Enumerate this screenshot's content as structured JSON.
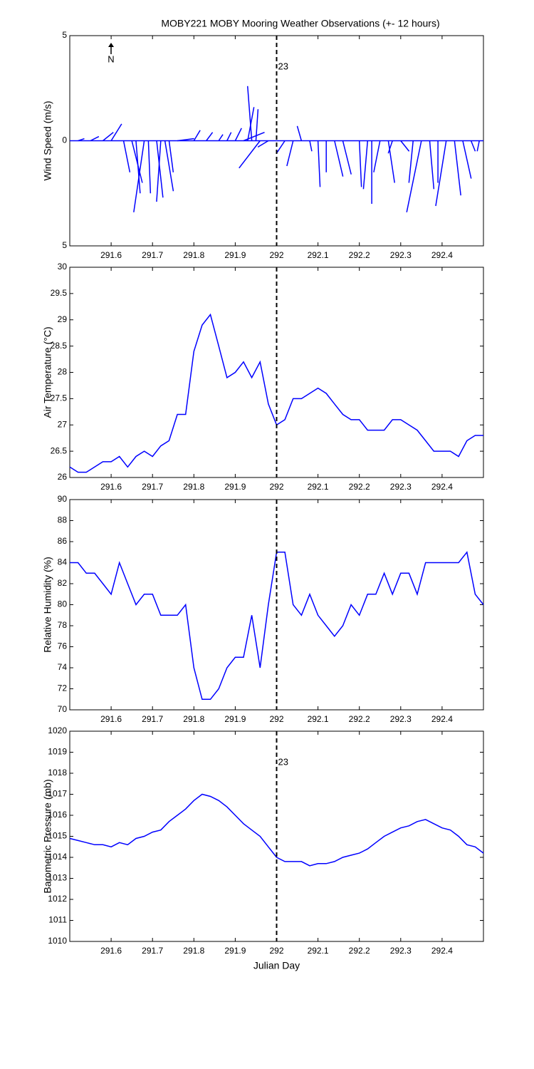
{
  "chart_data": [
    {
      "type": "stick",
      "title": "MOBY221 MOBY Mooring Weather Observations (+- 12 hours)",
      "y_label": "Wind Speed (m/s)",
      "north_label": "N",
      "color": "#0000ff",
      "annotation": {
        "text": "23",
        "x": 292,
        "y": 3.5,
        "color": "#cc0000"
      },
      "vline": 292,
      "xlim": [
        291.5,
        292.5
      ],
      "xticks": [
        291.6,
        291.7,
        291.8,
        291.9,
        292,
        292.1,
        292.2,
        292.3,
        292.4
      ],
      "ylim": [
        -5,
        5
      ],
      "yticks": [
        {
          "value": -5,
          "label": "5"
        },
        0,
        5
      ],
      "x": [
        291.52,
        291.55,
        291.58,
        291.6,
        291.63,
        291.65,
        291.66,
        291.68,
        291.69,
        291.71,
        291.72,
        291.73,
        291.74,
        291.76,
        291.8,
        291.83,
        291.86,
        291.88,
        291.9,
        291.92,
        291.93,
        291.94,
        291.95,
        291.96,
        291.98,
        292.02,
        292.04,
        292.06,
        292.08,
        292.1,
        292.12,
        292.14,
        292.16,
        292.2,
        292.22,
        292.23,
        292.25,
        292.27,
        292.28,
        292.3,
        292.33,
        292.35,
        292.37,
        292.39,
        292.41,
        292.43,
        292.45,
        292.47,
        292.49
      ],
      "u": [
        0.3,
        0.4,
        0.5,
        0.5,
        0.3,
        0.5,
        0.2,
        -0.5,
        0.1,
        0.3,
        -0.2,
        0.4,
        0.2,
        0.8,
        0.3,
        0.3,
        0.2,
        0.2,
        0.3,
        1.0,
        0.3,
        -0.2,
        0.1,
        -1.0,
        -0.5,
        -0.4,
        -0.3,
        -0.2,
        0.1,
        0.1,
        0.0,
        0.4,
        0.4,
        0.1,
        -0.2,
        0.0,
        -0.3,
        0.3,
        -0.2,
        0.4,
        -0.2,
        -0.7,
        0.2,
        0.0,
        -0.5,
        0.3,
        0.4,
        0.2,
        -0.1
      ],
      "v": [
        0.1,
        0.2,
        0.4,
        0.8,
        -1.5,
        -2.0,
        -2.5,
        -3.4,
        -2.5,
        -2.7,
        -2.9,
        -2.4,
        -1.5,
        0.1,
        0.5,
        0.4,
        0.3,
        0.4,
        0.6,
        0.4,
        1.6,
        2.6,
        1.5,
        -1.3,
        -0.3,
        -0.6,
        -1.2,
        0.7,
        -0.5,
        -2.2,
        -1.5,
        -1.7,
        -1.6,
        -2.2,
        -2.3,
        -3.0,
        -1.5,
        -2.0,
        -0.6,
        -0.5,
        -2.0,
        -3.4,
        -2.3,
        -2.0,
        -3.1,
        -2.6,
        -1.8,
        -0.5,
        -0.5
      ]
    },
    {
      "type": "line",
      "y_label": "Air Temperature (°C)",
      "color": "#0000ff",
      "vline": 292,
      "xlim": [
        291.5,
        292.5
      ],
      "xticks": [
        291.6,
        291.7,
        291.8,
        291.9,
        292,
        292.1,
        292.2,
        292.3,
        292.4
      ],
      "ylim": [
        26,
        30
      ],
      "yticks": [
        26,
        26.5,
        27,
        27.5,
        28,
        28.5,
        29,
        29.5,
        30
      ],
      "x": [
        291.5,
        291.52,
        291.54,
        291.56,
        291.58,
        291.6,
        291.62,
        291.64,
        291.66,
        291.68,
        291.7,
        291.72,
        291.74,
        291.76,
        291.78,
        291.8,
        291.82,
        291.84,
        291.86,
        291.88,
        291.9,
        291.92,
        291.94,
        291.96,
        291.98,
        292,
        292.02,
        292.04,
        292.06,
        292.08,
        292.1,
        292.12,
        292.14,
        292.16,
        292.18,
        292.2,
        292.22,
        292.24,
        292.26,
        292.28,
        292.3,
        292.32,
        292.34,
        292.36,
        292.38,
        292.4,
        292.42,
        292.44,
        292.46,
        292.48,
        292.5
      ],
      "values": [
        26.2,
        26.1,
        26.1,
        26.2,
        26.3,
        26.3,
        26.4,
        26.2,
        26.4,
        26.5,
        26.4,
        26.6,
        26.7,
        27.2,
        27.2,
        28.4,
        28.9,
        29.1,
        28.5,
        27.9,
        28.0,
        28.2,
        27.9,
        28.2,
        27.4,
        27.0,
        27.1,
        27.5,
        27.5,
        27.6,
        27.7,
        27.6,
        27.4,
        27.2,
        27.1,
        27.1,
        26.9,
        26.9,
        26.9,
        27.1,
        27.1,
        27.0,
        26.9,
        26.7,
        26.5,
        26.5,
        26.5,
        26.4,
        26.7,
        26.8,
        26.8
      ]
    },
    {
      "type": "line",
      "y_label": "Relative Humidity (%)",
      "color": "#0000ff",
      "vline": 292,
      "xlim": [
        291.5,
        292.5
      ],
      "xticks": [
        291.6,
        291.7,
        291.8,
        291.9,
        292,
        292.1,
        292.2,
        292.3,
        292.4
      ],
      "ylim": [
        70,
        90
      ],
      "yticks": [
        70,
        72,
        74,
        76,
        78,
        80,
        82,
        84,
        86,
        88,
        90
      ],
      "x": [
        291.5,
        291.52,
        291.54,
        291.56,
        291.58,
        291.6,
        291.62,
        291.64,
        291.66,
        291.68,
        291.7,
        291.72,
        291.74,
        291.76,
        291.78,
        291.8,
        291.82,
        291.84,
        291.86,
        291.88,
        291.9,
        291.92,
        291.94,
        291.96,
        291.98,
        292,
        292.02,
        292.04,
        292.06,
        292.08,
        292.1,
        292.12,
        292.14,
        292.16,
        292.18,
        292.2,
        292.22,
        292.24,
        292.26,
        292.28,
        292.3,
        292.32,
        292.34,
        292.36,
        292.38,
        292.4,
        292.42,
        292.44,
        292.46,
        292.48,
        292.5
      ],
      "values": [
        84,
        84,
        83,
        83,
        82,
        81,
        84,
        82,
        80,
        81,
        81,
        79,
        79,
        79,
        80,
        74,
        71,
        71,
        72,
        74,
        75,
        75,
        79,
        74,
        80,
        85,
        85,
        80,
        79,
        81,
        79,
        78,
        77,
        78,
        80,
        79,
        81,
        81,
        83,
        81,
        83,
        83,
        81,
        84,
        84,
        84,
        84,
        84,
        85,
        81,
        80
      ]
    },
    {
      "type": "line",
      "y_label": "Barometric Pressure (mb)",
      "x_label": "Julian Day",
      "color": "#0000ff",
      "vline": 292,
      "annotation": {
        "text": "23",
        "x": 292,
        "y": 1018.5,
        "color": "#cc0000"
      },
      "xlim": [
        291.5,
        292.5
      ],
      "xticks": [
        291.6,
        291.7,
        291.8,
        291.9,
        292,
        292.1,
        292.2,
        292.3,
        292.4
      ],
      "ylim": [
        1010,
        1020
      ],
      "yticks": [
        1010,
        1011,
        1012,
        1013,
        1014,
        1015,
        1016,
        1017,
        1018,
        1019,
        1020
      ],
      "x": [
        291.5,
        291.52,
        291.54,
        291.56,
        291.58,
        291.6,
        291.62,
        291.64,
        291.66,
        291.68,
        291.7,
        291.72,
        291.74,
        291.76,
        291.78,
        291.8,
        291.82,
        291.84,
        291.86,
        291.88,
        291.9,
        291.92,
        291.94,
        291.96,
        291.98,
        292,
        292.02,
        292.04,
        292.06,
        292.08,
        292.1,
        292.12,
        292.14,
        292.16,
        292.18,
        292.2,
        292.22,
        292.24,
        292.26,
        292.28,
        292.3,
        292.32,
        292.34,
        292.36,
        292.38,
        292.4,
        292.42,
        292.44,
        292.46,
        292.48,
        292.5
      ],
      "values": [
        1014.9,
        1014.8,
        1014.7,
        1014.6,
        1014.6,
        1014.5,
        1014.7,
        1014.6,
        1014.9,
        1015.0,
        1015.2,
        1015.3,
        1015.7,
        1016.0,
        1016.3,
        1016.7,
        1017.0,
        1016.9,
        1016.7,
        1016.4,
        1016.0,
        1015.6,
        1015.3,
        1015.0,
        1014.5,
        1014.0,
        1013.8,
        1013.8,
        1013.8,
        1013.6,
        1013.7,
        1013.7,
        1013.8,
        1014.0,
        1014.1,
        1014.2,
        1014.4,
        1014.7,
        1015.0,
        1015.2,
        1015.4,
        1015.5,
        1015.7,
        1015.8,
        1015.6,
        1015.4,
        1015.3,
        1015.0,
        1014.6,
        1014.5,
        1014.2
      ]
    }
  ]
}
